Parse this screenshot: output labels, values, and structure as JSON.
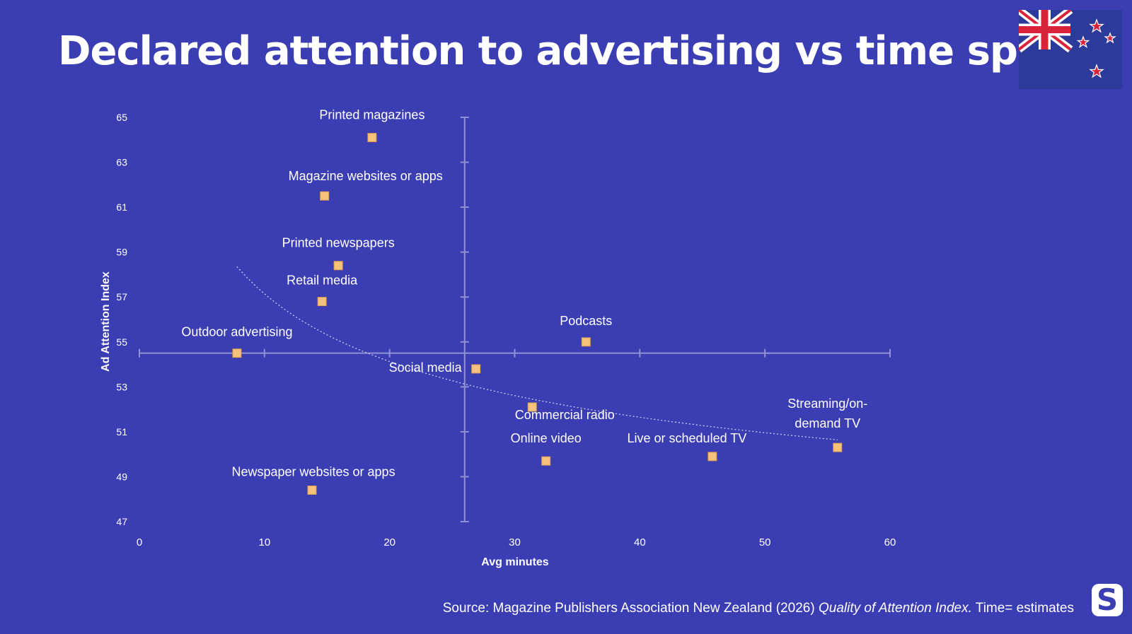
{
  "header": {
    "title": "Declared attention to advertising vs time spent"
  },
  "flag": {
    "icon": "new-zealand-flag-icon"
  },
  "colors": {
    "background": "#3b3db3",
    "point": "#f5c27b",
    "axis": "#8f91d6",
    "trend": "#c9cbf2"
  },
  "chart_data": {
    "type": "scatter",
    "xlabel": "Avg minutes",
    "ylabel": "Ad Attention Index",
    "xlim": [
      0,
      60
    ],
    "ylim": [
      47,
      65
    ],
    "x_ticks": [
      "0",
      "10",
      "20",
      "30",
      "40",
      "50",
      "60"
    ],
    "y_ticks": [
      "47",
      "49",
      "51",
      "53",
      "55",
      "57",
      "59",
      "61",
      "63",
      "65"
    ],
    "x_cross": 26,
    "y_cross": 54.5,
    "trendline": "dotted",
    "points": [
      {
        "label": "Printed magazines",
        "x": 18.6,
        "y": 64.1
      },
      {
        "label": "Magazine websites or apps",
        "x": 14.8,
        "y": 61.5
      },
      {
        "label": "Printed newspapers",
        "x": 15.9,
        "y": 58.4
      },
      {
        "label": "Retail media",
        "x": 14.6,
        "y": 56.8
      },
      {
        "label": "Outdoor advertising",
        "x": 7.8,
        "y": 54.5
      },
      {
        "label": "Podcasts",
        "x": 35.7,
        "y": 55.0
      },
      {
        "label": "Social media",
        "x": 26.9,
        "y": 53.8
      },
      {
        "label": "Commercial radio",
        "x": 31.4,
        "y": 52.1
      },
      {
        "label": "Online video",
        "x": 32.5,
        "y": 49.7
      },
      {
        "label": "Live or scheduled TV",
        "x": 45.8,
        "y": 49.9
      },
      {
        "label": "Streaming/on-demand TV",
        "x": 55.8,
        "y": 50.3
      },
      {
        "label": "Newspaper websites or apps",
        "x": 13.8,
        "y": 48.4
      }
    ]
  },
  "footer": {
    "source_prefix": "Source: Magazine Publishers Association New Zealand (2026) ",
    "source_italic": "Quality of Attention Index.",
    "source_suffix": " Time= estimates",
    "logo_letter": "S"
  }
}
